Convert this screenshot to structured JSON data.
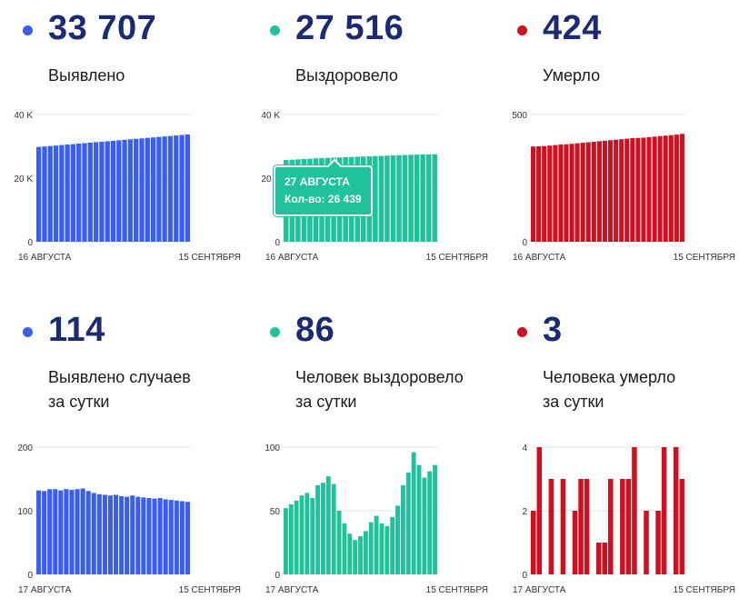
{
  "panels": [
    {
      "value": "33 707",
      "label": [
        "Выявлено"
      ],
      "color": "#3a5df2",
      "chart_data": {
        "type": "bar",
        "series_color": "#3a5df2",
        "y_ticks": [
          "40 K",
          "20 K",
          "0"
        ],
        "y_tick_values": [
          40000,
          20000,
          0
        ],
        "ylim": [
          0,
          40000
        ],
        "x_labels": [
          "16 АВГУСТА",
          "15 СЕНТЯБРЯ"
        ],
        "values": [
          29800,
          29950,
          30100,
          30250,
          30400,
          30550,
          30700,
          30850,
          31000,
          31150,
          31300,
          31450,
          31600,
          31750,
          31900,
          32050,
          32200,
          32350,
          32500,
          32650,
          32800,
          32950,
          33100,
          33250,
          33400,
          33550,
          33707
        ]
      }
    },
    {
      "value": "27 516",
      "label": [
        "Выздоровело"
      ],
      "color": "#1fc29a",
      "chart_data": {
        "type": "bar",
        "series_color": "#1fc29a",
        "y_ticks": [
          "40 K",
          "20 K",
          "0"
        ],
        "y_tick_values": [
          40000,
          20000,
          0
        ],
        "ylim": [
          0,
          40000
        ],
        "x_labels": [
          "16 АВГУСТА",
          "15 СЕНТЯБРЯ"
        ],
        "values": [
          25700,
          25800,
          25900,
          26000,
          26100,
          26200,
          26300,
          26380,
          26439,
          26500,
          26580,
          26650,
          26720,
          26790,
          26860,
          26930,
          27000,
          27070,
          27140,
          27210,
          27280,
          27340,
          27400,
          27450,
          27490,
          27516
        ],
        "annotation": {
          "index": 8,
          "date": "27 АВГУСТА",
          "text": "Кол-во: 26 439"
        }
      }
    },
    {
      "value": "424",
      "label": [
        "Умерло"
      ],
      "color": "#d01020",
      "chart_data": {
        "type": "bar",
        "series_color": "#d01020",
        "y_ticks": [
          "500",
          "0"
        ],
        "y_tick_values": [
          500,
          0
        ],
        "ylim": [
          0,
          500
        ],
        "x_labels": [
          "16 АВГУСТА",
          "15 СЕНТЯБРЯ"
        ],
        "values": [
          374,
          375,
          376,
          378,
          380,
          382,
          383,
          385,
          387,
          389,
          391,
          393,
          395,
          397,
          399,
          401,
          403,
          405,
          407,
          408,
          409,
          411,
          413,
          415,
          417,
          419,
          421,
          424
        ]
      }
    },
    {
      "value": "114",
      "label": [
        "Выявлено случаев",
        "за сутки"
      ],
      "color": "#3a5df2",
      "chart_data": {
        "type": "bar",
        "series_color": "#3a5df2",
        "y_ticks": [
          "200",
          "100",
          "0"
        ],
        "y_tick_values": [
          200,
          100,
          0
        ],
        "ylim": [
          0,
          200
        ],
        "x_labels": [
          "17 АВГУСТА",
          "15 СЕНТЯБРЯ"
        ],
        "values": [
          132,
          131,
          134,
          134,
          132,
          134,
          133,
          134,
          135,
          131,
          128,
          126,
          125,
          124,
          125,
          123,
          122,
          124,
          122,
          121,
          120,
          119,
          120,
          118,
          117,
          116,
          115,
          114
        ]
      }
    },
    {
      "value": "86",
      "label": [
        "Человек выздоровело",
        "за сутки"
      ],
      "color": "#1fc29a",
      "chart_data": {
        "type": "bar",
        "series_color": "#1fc29a",
        "y_ticks": [
          "100",
          "50",
          "0"
        ],
        "y_tick_values": [
          100,
          50,
          0
        ],
        "ylim": [
          0,
          100
        ],
        "x_labels": [
          "17 АВГУСТА",
          "15 СЕНТЯБРЯ"
        ],
        "values": [
          52,
          55,
          58,
          62,
          64,
          60,
          70,
          72,
          77,
          71,
          50,
          40,
          32,
          27,
          30,
          34,
          41,
          46,
          40,
          38,
          45,
          54,
          70,
          80,
          96,
          86,
          76,
          81,
          86
        ]
      }
    },
    {
      "value": "3",
      "label": [
        "Человека умерло",
        "за сутки"
      ],
      "color": "#d01020",
      "chart_data": {
        "type": "bar",
        "series_color": "#d01020",
        "y_ticks": [
          "4",
          "2",
          "0"
        ],
        "y_tick_values": [
          4,
          2,
          0
        ],
        "ylim": [
          0,
          4
        ],
        "x_labels": [
          "17 АВГУСТА",
          "15 СЕНТЯБРЯ"
        ],
        "values": [
          2,
          4,
          0,
          3,
          0,
          3,
          0,
          2,
          3,
          3,
          0,
          1,
          1,
          3,
          0,
          3,
          3,
          4,
          0,
          2,
          0,
          2,
          4,
          0,
          4,
          3
        ]
      }
    }
  ]
}
